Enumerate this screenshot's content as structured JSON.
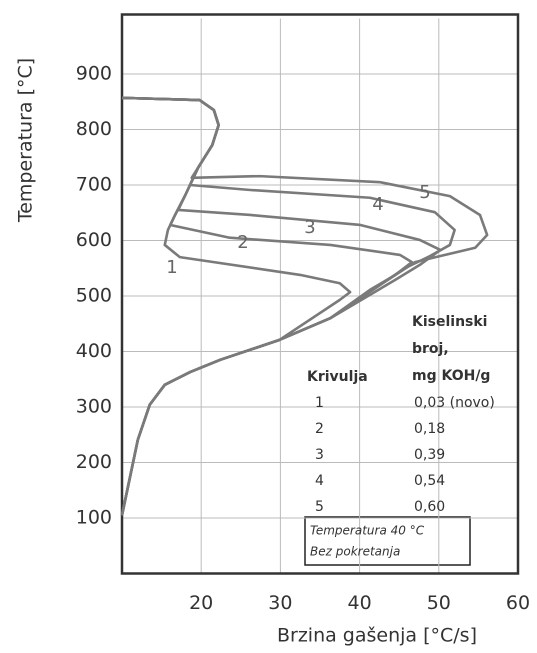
{
  "chart_data": {
    "type": "line",
    "xlabel": "Brzina gašenja [°C/s]",
    "ylabel": "Temperatura [°C]",
    "xlim": [
      10,
      60
    ],
    "xticks": [
      20,
      30,
      40,
      50,
      60
    ],
    "ylim": [
      0,
      1000
    ],
    "yticks": [
      100,
      200,
      300,
      400,
      500,
      600,
      700,
      800,
      900
    ],
    "grid": true,
    "series": [
      {
        "name": "1",
        "color": "#7a7a7a",
        "x": [
          10,
          19.8,
          21.6,
          22.2,
          21.4,
          19.6,
          18,
          16.7,
          15.8,
          15.4,
          17.3,
          32.5,
          37.5,
          38.8,
          37.5,
          29.9,
          22.4,
          18.6,
          15.4,
          13.5,
          12,
          10
        ],
        "values": [
          857,
          853,
          835,
          808,
          772,
          731,
          682,
          646,
          619,
          592,
          570,
          538,
          523,
          507,
          493,
          421,
          385,
          363,
          340,
          304,
          241,
          105
        ]
      },
      {
        "name": "2",
        "color": "#7a7a7a",
        "x": [
          10,
          19.8,
          21.6,
          22.2,
          21.4,
          19.6,
          18,
          16.7,
          16.1,
          23.6,
          36.3,
          45.1,
          46.6,
          44.5,
          41.3,
          36.3,
          29.9,
          22.4,
          18.6,
          15.4,
          13.5,
          12,
          10
        ],
        "values": [
          857,
          853,
          835,
          808,
          772,
          731,
          682,
          646,
          628,
          605,
          592,
          574,
          561,
          538,
          511,
          460,
          421,
          385,
          363,
          340,
          304,
          241,
          105
        ]
      },
      {
        "name": "3",
        "color": "#7a7a7a",
        "x": [
          10,
          19.8,
          21.6,
          22.2,
          21.4,
          19.6,
          18,
          17.1,
          26.2,
          40.1,
          47.6,
          50.2,
          47.6,
          44.5,
          36.3,
          29.9,
          22.4,
          18.6,
          15.4,
          13.5,
          12,
          10
        ],
        "values": [
          857,
          853,
          835,
          808,
          772,
          731,
          682,
          655,
          646,
          628,
          601,
          583,
          556,
          529,
          460,
          421,
          385,
          363,
          340,
          304,
          241,
          105
        ]
      },
      {
        "name": "4",
        "color": "#7a7a7a",
        "x": [
          10,
          19.8,
          21.6,
          22.2,
          21.4,
          19.6,
          18.6,
          26.2,
          41.3,
          49.5,
          52,
          51.4,
          48.9,
          45.7,
          42.6,
          36.3,
          29.9,
          22.4,
          18.6,
          15.4,
          13.5,
          12,
          10
        ],
        "values": [
          857,
          853,
          835,
          808,
          772,
          731,
          700,
          691,
          677,
          651,
          619,
          592,
          572,
          550,
          520,
          460,
          421,
          385,
          363,
          340,
          304,
          241,
          105
        ]
      },
      {
        "name": "5",
        "color": "#7a7a7a",
        "x": [
          10,
          19.8,
          21.6,
          22.2,
          21.4,
          19.6,
          18.8,
          27.4,
          42.6,
          51.4,
          55.2,
          56.1,
          54.6,
          50.2,
          47,
          42.6,
          36.3,
          29.9,
          22.4,
          18.6,
          15.4,
          13.5,
          12,
          10
        ],
        "values": [
          857,
          853,
          835,
          808,
          772,
          731,
          713,
          716,
          705,
          680,
          646,
          610,
          587,
          572,
          561,
          520,
          460,
          421,
          385,
          363,
          340,
          304,
          241,
          105
        ]
      }
    ],
    "legend_table": {
      "col1_header": "Krivulja",
      "col2_header": [
        "Kiselinski",
        "broj,",
        "mg KOH/g"
      ],
      "rows": [
        [
          "1",
          "0,03 (novo)"
        ],
        [
          "2",
          "0,18"
        ],
        [
          "3",
          "0,39"
        ],
        [
          "4",
          "0,54"
        ],
        [
          "5",
          "0,60"
        ]
      ]
    },
    "note": [
      "Temperatura 40 °C",
      "Bez pokretanja"
    ]
  }
}
